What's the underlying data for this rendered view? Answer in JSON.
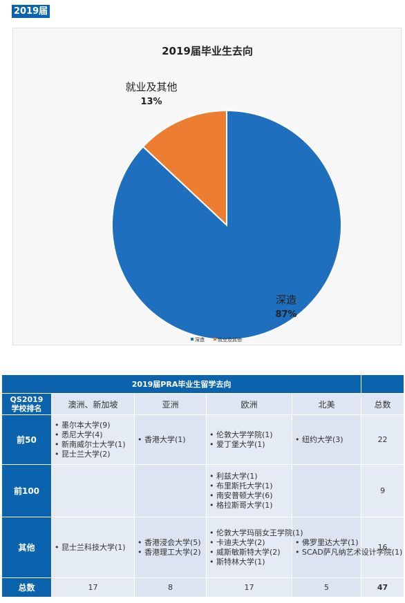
{
  "header": {
    "year_tag": "2019届"
  },
  "chart_data": {
    "type": "pie",
    "title": "2019届毕业生去向",
    "slices": [
      {
        "label": "深造",
        "value": 87,
        "value_label": "87%",
        "color": "#1e6fbd"
      },
      {
        "label": "就业及其他",
        "value": 13,
        "value_label": "13%",
        "color": "#ed7d31"
      }
    ],
    "legend": [
      "深造",
      "就业及其他"
    ],
    "legend_position": "bottom"
  },
  "table": {
    "title": "2019届PRA毕业生留学去向",
    "columns": [
      "QS2019学校排名",
      "澳洲、新加坡",
      "亚洲",
      "欧洲",
      "北美",
      "总数"
    ],
    "rows": [
      {
        "label": "前50",
        "aus_sg": [
          "墨尔本大学(9)",
          "悉尼大学(4)",
          "新南威尔士大学(1)",
          "昆士兰大学(2)"
        ],
        "asia": [
          "香港大学(1)"
        ],
        "europe": [
          "伦敦大学学院(1)",
          "爱丁堡大学(1)"
        ],
        "na": [
          "纽约大学(3)"
        ],
        "total": "22"
      },
      {
        "label": "前100",
        "aus_sg": [],
        "asia": [],
        "europe": [
          "利兹大学(1)",
          "布里斯托大学(1)",
          "南安普顿大学(6)",
          "格拉斯哥大学(1)"
        ],
        "na": [],
        "total": "9"
      },
      {
        "label": "其他",
        "aus_sg": [
          "昆士兰科技大学(1)"
        ],
        "asia": [
          "香港浸会大学(5)",
          "香港理工大学(2)"
        ],
        "europe": [
          "伦敦大学玛丽女王学院(1)",
          "卡迪夫大学(2)",
          "威斯敏斯特大学(2)",
          "斯特林大学(1)"
        ],
        "na": [
          "佛罗里达大学(1)",
          "SCAD萨凡纳艺术设计学院(1)"
        ],
        "total": "16"
      }
    ],
    "totals": {
      "label": "总数",
      "aus_sg": "17",
      "asia": "8",
      "europe": "17",
      "na": "5",
      "total": "47"
    }
  }
}
